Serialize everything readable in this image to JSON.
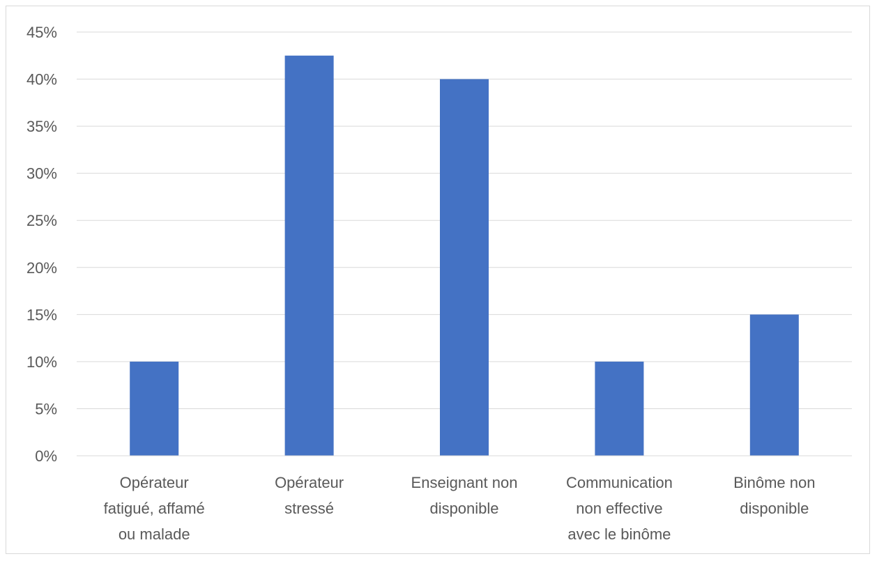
{
  "chart_data": {
    "type": "bar",
    "title": "",
    "xlabel": "",
    "ylabel": "",
    "ylim": [
      0,
      45
    ],
    "yticks": [
      "0%",
      "5%",
      "10%",
      "15%",
      "20%",
      "25%",
      "30%",
      "35%",
      "40%",
      "45%"
    ],
    "grid": true,
    "legend": "none",
    "bar_color": "#4472C4",
    "categories": [
      [
        "Opérateur",
        "fatigué, affamé",
        "ou malade"
      ],
      [
        "Opérateur",
        "stressé"
      ],
      [
        "Enseignant non",
        "disponible"
      ],
      [
        "Communication",
        "non effective",
        "avec le binôme"
      ],
      [
        "Binôme non",
        "disponible"
      ]
    ],
    "values": [
      10,
      42.5,
      40,
      10,
      15
    ]
  }
}
